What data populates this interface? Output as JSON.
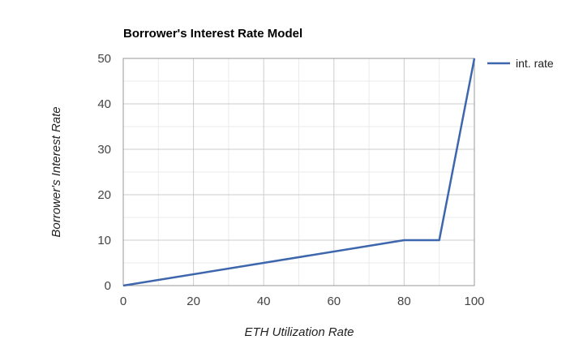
{
  "chart_data": {
    "type": "line",
    "title": "Borrower's Interest Rate Model",
    "xlabel": "ETH Utilization Rate",
    "ylabel": "Borrower's Interest Rate",
    "xlim": [
      0,
      100
    ],
    "ylim": [
      0,
      50
    ],
    "x_ticks": [
      0,
      20,
      40,
      60,
      80,
      100
    ],
    "y_ticks": [
      0,
      10,
      20,
      30,
      40,
      50
    ],
    "grid": true,
    "legend_position": "right",
    "series": [
      {
        "name": "int. rate",
        "color": "#3d66ad",
        "x": [
          0,
          80,
          90,
          100
        ],
        "y": [
          0,
          10,
          10,
          50
        ]
      }
    ]
  }
}
